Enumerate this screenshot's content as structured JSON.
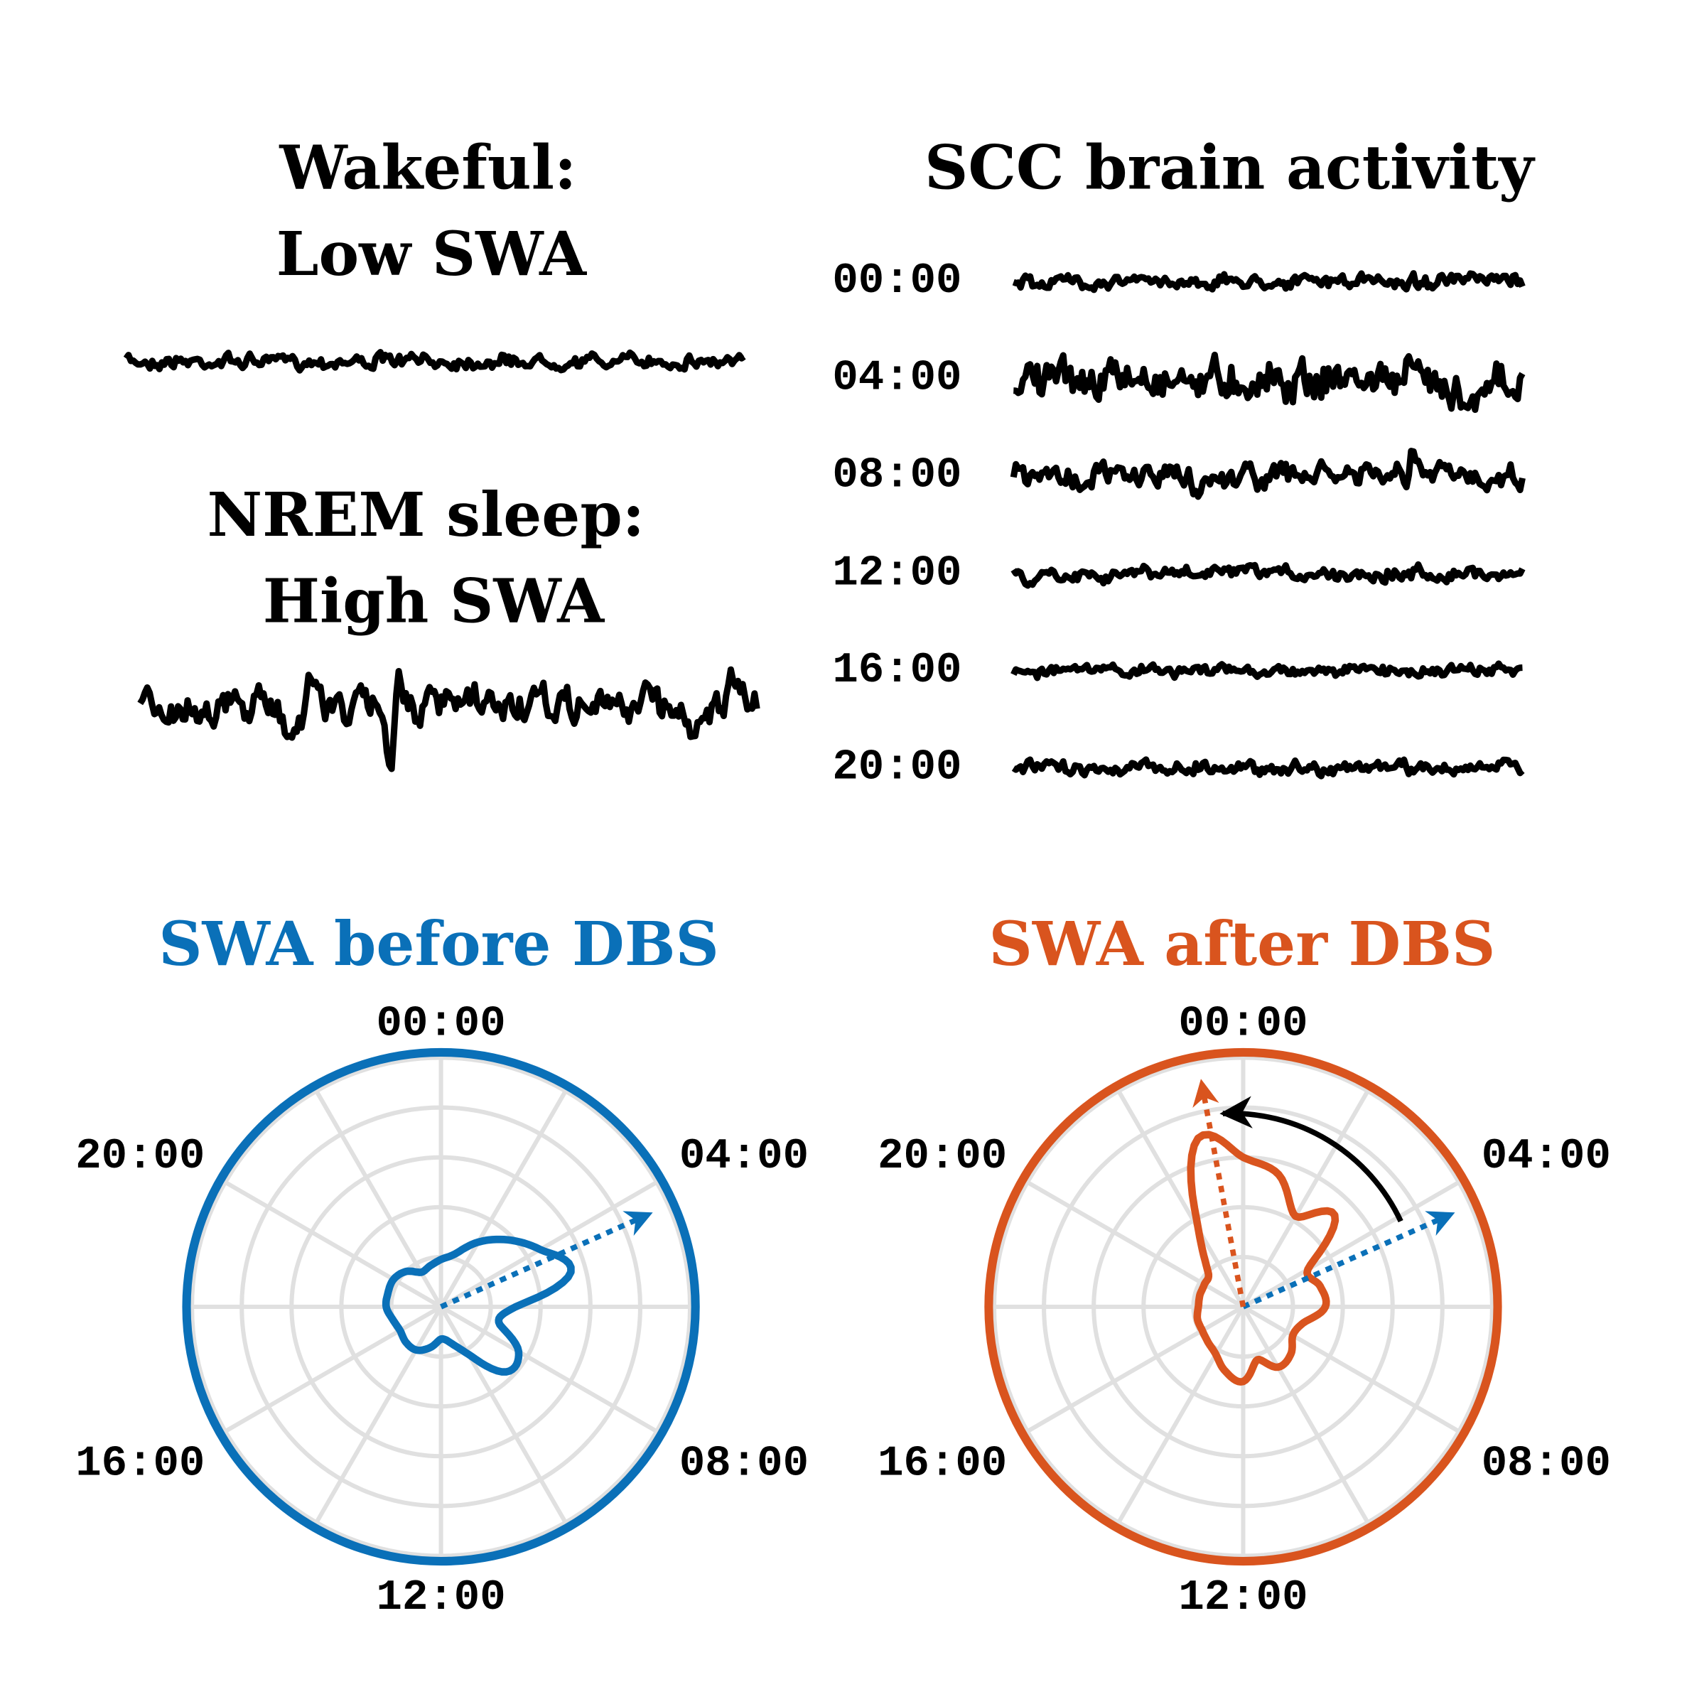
{
  "left_panel": {
    "wake_title_line1": "Wakeful:",
    "wake_title_line2": "Low SWA",
    "nrem_title_line1": "NREM sleep:",
    "nrem_title_line2": "High SWA"
  },
  "right_panel": {
    "title": "SCC brain activity",
    "trace_labels": [
      "00:00",
      "04:00",
      "08:00",
      "12:00",
      "16:00",
      "20:00"
    ]
  },
  "colors": {
    "before": "#0a70b8",
    "after": "#d9541e",
    "grid": "#e0e0e0",
    "trace": "#000000"
  },
  "chart_data": [
    {
      "type": "polar",
      "title": "SWA before DBS",
      "angular_labels": [
        "00:00",
        "04:00",
        "08:00",
        "12:00",
        "16:00",
        "20:00"
      ],
      "hours": [
        0,
        1,
        2,
        3,
        4,
        5,
        6,
        7,
        8,
        9,
        10,
        11,
        12,
        13,
        14,
        15,
        16,
        17,
        18,
        19,
        20,
        21,
        22,
        23
      ],
      "values": [
        0.19,
        0.22,
        0.3,
        0.38,
        0.46,
        0.54,
        0.3,
        0.24,
        0.36,
        0.37,
        0.22,
        0.15,
        0.13,
        0.17,
        0.2,
        0.2,
        0.19,
        0.2,
        0.22,
        0.22,
        0.22,
        0.2,
        0.16,
        0.17
      ],
      "radial_range": [
        0,
        1
      ],
      "peak_arrow_hour": 4.4,
      "color": "#0a70b8"
    },
    {
      "type": "polar",
      "title": "SWA after DBS",
      "angular_labels": [
        "00:00",
        "04:00",
        "08:00",
        "12:00",
        "16:00",
        "20:00"
      ],
      "hours": [
        0,
        1,
        2,
        3,
        4,
        5,
        6,
        7,
        8,
        9,
        10,
        11,
        12,
        13,
        14,
        15,
        16,
        17,
        18,
        19,
        20,
        21,
        22,
        23
      ],
      "values": [
        0.6,
        0.55,
        0.42,
        0.52,
        0.3,
        0.32,
        0.33,
        0.25,
        0.23,
        0.27,
        0.28,
        0.22,
        0.3,
        0.27,
        0.22,
        0.2,
        0.19,
        0.19,
        0.18,
        0.18,
        0.18,
        0.2,
        0.36,
        0.7
      ],
      "radial_range": [
        0,
        1
      ],
      "peak_arrow_hour": 23.3,
      "previous_peak_arrow_hour": 4.4,
      "color": "#d9541e"
    }
  ]
}
